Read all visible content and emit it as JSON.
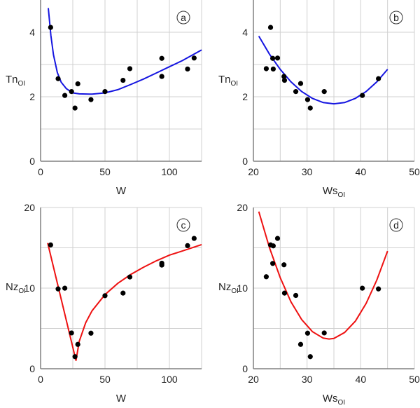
{
  "chart_data": [
    {
      "type": "scatter",
      "panel_label": "a",
      "xlabel": "W",
      "ylabel": "Tn",
      "ylabel_sub": "OI",
      "xlim": [
        0,
        125
      ],
      "ylim": [
        0,
        5
      ],
      "xticks": [
        0,
        50,
        100
      ],
      "yticks": [
        0,
        2,
        4
      ],
      "xgrid": [
        25,
        50,
        75,
        100,
        125
      ],
      "ygrid": [
        1,
        2,
        3,
        4
      ],
      "grid": true,
      "curve_color": "#1515e0",
      "points": {
        "x": [
          7.8,
          13.6,
          18.8,
          24,
          26.7,
          28.9,
          39.1,
          50,
          64,
          69.3,
          94.1,
          94.1,
          114.1,
          119.2
        ],
        "y": [
          4.15,
          2.56,
          2.04,
          2.16,
          1.65,
          2.4,
          1.91,
          2.16,
          2.51,
          2.87,
          3.19,
          2.63,
          2.86,
          3.2
        ]
      },
      "fit": {
        "x": [
          6,
          8,
          10,
          13,
          16,
          20,
          25,
          30,
          40,
          50,
          60,
          70,
          80,
          90,
          100,
          110,
          125
        ],
        "y": [
          4.75,
          3.9,
          3.3,
          2.75,
          2.45,
          2.25,
          2.12,
          2.09,
          2.08,
          2.12,
          2.22,
          2.38,
          2.55,
          2.74,
          2.93,
          3.12,
          3.45
        ]
      }
    },
    {
      "type": "scatter",
      "panel_label": "b",
      "xlabel": "Ws",
      "xlabel_sub": "OI",
      "ylabel": "Tn",
      "ylabel_sub": "OI",
      "xlim": [
        20,
        50
      ],
      "ylim": [
        0,
        5
      ],
      "xticks": [
        20,
        30,
        40,
        50
      ],
      "yticks": [
        0,
        2,
        4
      ],
      "xgrid": [
        25,
        30,
        35,
        40,
        45,
        50
      ],
      "ygrid": [
        1,
        2,
        3,
        4
      ],
      "grid": true,
      "curve_color": "#1515e0",
      "points": {
        "x": [
          23.2,
          22.4,
          23.6,
          23.7,
          24.5,
          25.7,
          25.8,
          27.9,
          28.8,
          30.1,
          30.6,
          33.2,
          40.3,
          43.3
        ],
        "y": [
          4.15,
          2.87,
          3.19,
          2.86,
          3.2,
          2.63,
          2.51,
          2.16,
          2.41,
          1.91,
          1.65,
          2.16,
          2.04,
          2.56
        ]
      },
      "fit": {
        "x": [
          21,
          23,
          25,
          27,
          29,
          31,
          33,
          35,
          37,
          39,
          41,
          43,
          45
        ],
        "y": [
          3.88,
          3.32,
          2.85,
          2.46,
          2.16,
          1.95,
          1.82,
          1.78,
          1.82,
          1.95,
          2.16,
          2.46,
          2.85
        ]
      }
    },
    {
      "type": "scatter",
      "panel_label": "c",
      "xlabel": "W",
      "ylabel": "Nz",
      "ylabel_sub": "OI",
      "xlim": [
        0,
        125
      ],
      "ylim": [
        0,
        20
      ],
      "xticks": [
        0,
        50,
        100
      ],
      "yticks": [
        0,
        10,
        20
      ],
      "xgrid": [
        25,
        50,
        75,
        100,
        125
      ],
      "ygrid": [
        5,
        10,
        15,
        20
      ],
      "grid": true,
      "curve_color": "#ee1111",
      "points": {
        "x": [
          7.8,
          13.6,
          18.8,
          24,
          26.7,
          28.9,
          39.1,
          50,
          64,
          69.3,
          94.1,
          94.1,
          114.1,
          119.2
        ],
        "y": [
          15.36,
          9.9,
          9.99,
          4.44,
          1.5,
          3.02,
          4.41,
          9.06,
          9.38,
          11.38,
          13.09,
          12.86,
          15.27,
          16.17
        ]
      },
      "fit": {
        "x": [
          5.5,
          27.5,
          28,
          30,
          35,
          40,
          50,
          60,
          70,
          80,
          90,
          100,
          110,
          125
        ],
        "y": [
          15.6,
          1.0,
          1.5,
          3.4,
          5.7,
          7.2,
          9.2,
          10.6,
          11.7,
          12.6,
          13.4,
          14.1,
          14.6,
          15.4
        ]
      }
    },
    {
      "type": "scatter",
      "panel_label": "d",
      "xlabel": "Ws",
      "xlabel_sub": "OI",
      "ylabel": "Nz",
      "ylabel_sub": "OI",
      "xlim": [
        20,
        50
      ],
      "ylim": [
        0,
        20
      ],
      "xticks": [
        20,
        30,
        40,
        50
      ],
      "yticks": [
        0,
        10,
        20
      ],
      "xgrid": [
        25,
        30,
        35,
        40,
        45,
        50
      ],
      "ygrid": [
        5,
        10,
        15,
        20
      ],
      "grid": true,
      "curve_color": "#ee1111",
      "points": {
        "x": [
          22.4,
          23.2,
          23.7,
          23.6,
          24.5,
          25.7,
          25.8,
          27.9,
          28.8,
          30.1,
          30.6,
          33.2,
          40.3,
          43.3
        ],
        "y": [
          11.41,
          15.36,
          15.24,
          13.06,
          16.17,
          12.89,
          9.38,
          9.09,
          3.02,
          4.41,
          1.5,
          4.44,
          9.99,
          9.9
        ]
      },
      "fit": {
        "x": [
          21,
          23,
          25,
          27,
          29,
          31,
          33,
          34.1,
          35,
          37,
          39,
          41,
          43,
          45
        ],
        "y": [
          19.5,
          15.0,
          11.3,
          8.3,
          6.1,
          4.6,
          3.8,
          3.69,
          3.76,
          4.5,
          5.9,
          8.1,
          11.0,
          14.6
        ]
      }
    }
  ]
}
